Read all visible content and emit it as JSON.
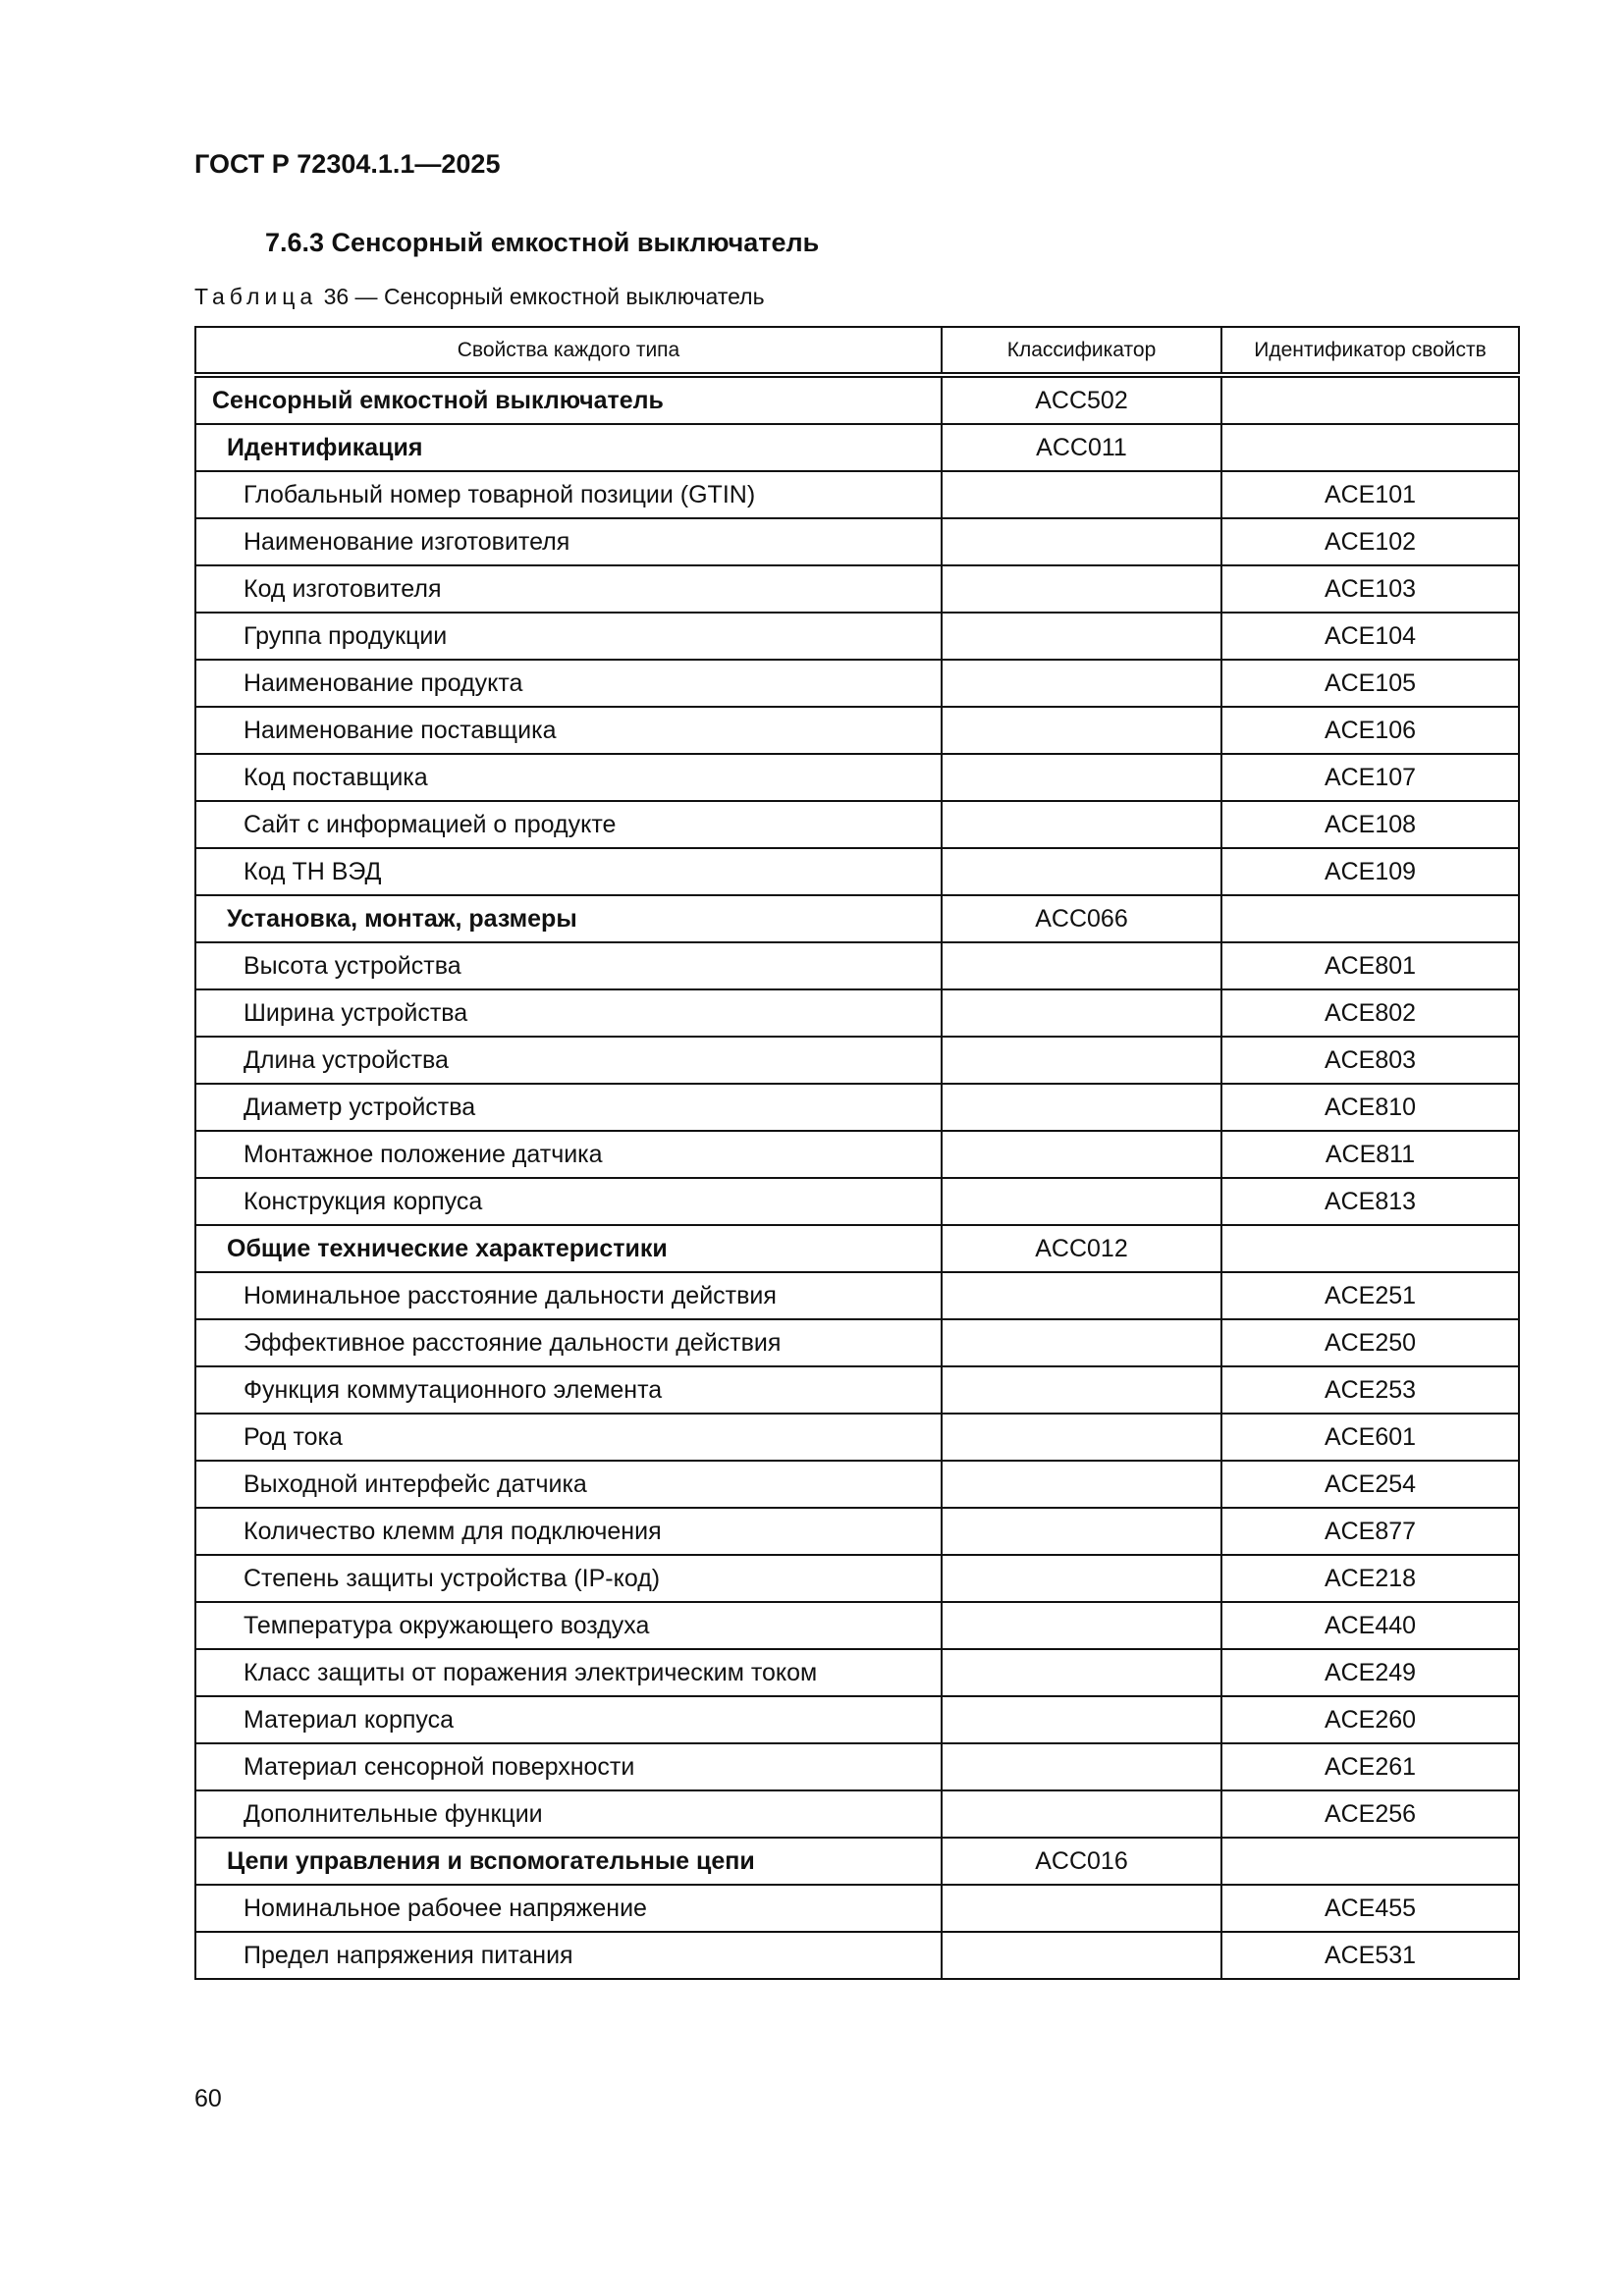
{
  "header": {
    "doc_id": "ГОСТ Р 72304.1.1—2025"
  },
  "section": {
    "title": "7.6.3 Сенсорный емкостной выключатель"
  },
  "table": {
    "caption_label": "Таблица",
    "caption_text": " 36 — Сенсорный емкостной выключатель",
    "columns": [
      "Свойства каждого типа",
      "Классификатор",
      "Идентификатор свойств"
    ],
    "rows": [
      {
        "name": "Сенсорный емкостной выключатель",
        "level": 0,
        "classifier": "ACC502",
        "id": ""
      },
      {
        "name": "Идентификация",
        "level": 1,
        "classifier": "ACC011",
        "id": ""
      },
      {
        "name": "Глобальный номер товарной позиции (GTIN)",
        "level": 2,
        "classifier": "",
        "id": "ACE101"
      },
      {
        "name": "Наименование изготовителя",
        "level": 2,
        "classifier": "",
        "id": "ACE102"
      },
      {
        "name": "Код изготовителя",
        "level": 2,
        "classifier": "",
        "id": "ACE103"
      },
      {
        "name": "Группа продукции",
        "level": 2,
        "classifier": "",
        "id": "ACE104"
      },
      {
        "name": "Наименование продукта",
        "level": 2,
        "classifier": "",
        "id": "ACE105"
      },
      {
        "name": "Наименование поставщика",
        "level": 2,
        "classifier": "",
        "id": "ACE106"
      },
      {
        "name": "Код поставщика",
        "level": 2,
        "classifier": "",
        "id": "ACE107"
      },
      {
        "name": "Сайт с информацией о продукте",
        "level": 2,
        "classifier": "",
        "id": "ACE108"
      },
      {
        "name": "Код ТН ВЭД",
        "level": 2,
        "classifier": "",
        "id": "ACE109"
      },
      {
        "name": "Установка, монтаж, размеры",
        "level": 1,
        "classifier": "ACC066",
        "id": ""
      },
      {
        "name": "Высота устройства",
        "level": 2,
        "classifier": "",
        "id": "ACE801"
      },
      {
        "name": "Ширина устройства",
        "level": 2,
        "classifier": "",
        "id": "ACE802"
      },
      {
        "name": "Длина устройства",
        "level": 2,
        "classifier": "",
        "id": "ACE803"
      },
      {
        "name": "Диаметр устройства",
        "level": 2,
        "classifier": "",
        "id": "ACE810"
      },
      {
        "name": "Монтажное положение датчика",
        "level": 2,
        "classifier": "",
        "id": "ACE811"
      },
      {
        "name": "Конструкция корпуса",
        "level": 2,
        "classifier": "",
        "id": "ACE813"
      },
      {
        "name": "Общие технические характеристики",
        "level": 1,
        "classifier": "ACC012",
        "id": ""
      },
      {
        "name": "Номинальное расстояние дальности действия",
        "level": 2,
        "classifier": "",
        "id": "ACE251"
      },
      {
        "name": "Эффективное расстояние дальности действия",
        "level": 2,
        "classifier": "",
        "id": "ACE250"
      },
      {
        "name": "Функция коммутационного элемента",
        "level": 2,
        "classifier": "",
        "id": "ACE253"
      },
      {
        "name": "Род тока",
        "level": 2,
        "classifier": "",
        "id": "ACE601"
      },
      {
        "name": "Выходной интерфейс датчика",
        "level": 2,
        "classifier": "",
        "id": "ACE254"
      },
      {
        "name": "Количество клемм для подключения",
        "level": 2,
        "classifier": "",
        "id": "ACE877"
      },
      {
        "name": "Степень защиты устройства (IP-код)",
        "level": 2,
        "classifier": "",
        "id": "ACE218"
      },
      {
        "name": "Температура окружающего воздуха",
        "level": 2,
        "classifier": "",
        "id": "ACE440"
      },
      {
        "name": "Класс защиты от поражения электрическим током",
        "level": 2,
        "classifier": "",
        "id": "ACE249"
      },
      {
        "name": "Материал корпуса",
        "level": 2,
        "classifier": "",
        "id": "ACE260"
      },
      {
        "name": "Материал сенсорной поверхности",
        "level": 2,
        "classifier": "",
        "id": "ACE261"
      },
      {
        "name": "Дополнительные функции",
        "level": 2,
        "classifier": "",
        "id": "ACE256"
      },
      {
        "name": "Цепи управления и вспомогательные цепи",
        "level": 1,
        "classifier": "ACC016",
        "id": ""
      },
      {
        "name": "Номинальное рабочее напряжение",
        "level": 2,
        "classifier": "",
        "id": "ACE455"
      },
      {
        "name": "Предел напряжения питания",
        "level": 2,
        "classifier": "",
        "id": "ACE531"
      }
    ]
  },
  "footer": {
    "page_number": "60"
  }
}
